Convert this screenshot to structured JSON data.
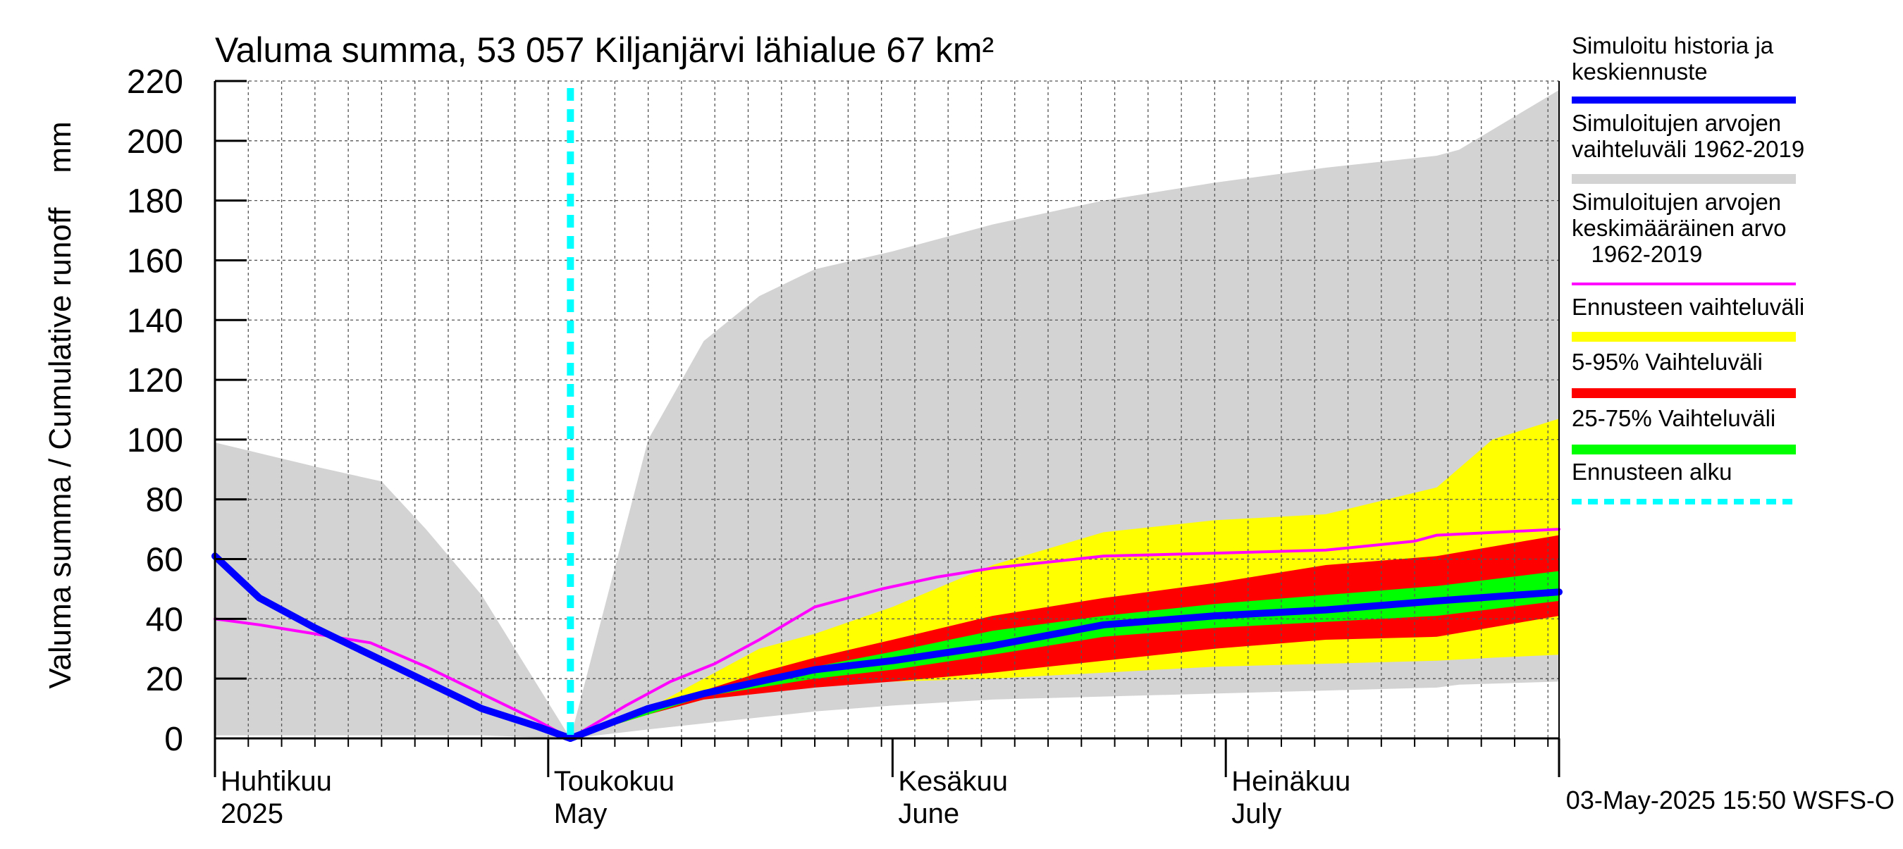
{
  "chart_data": {
    "type": "area",
    "title": "Valuma summa, 53 057 Kiljanjärvi lähialue 67 km²",
    "ylabel": "Valuma summa / Cumulative runoff    mm",
    "ylim": [
      0,
      220
    ],
    "y_ticks": [
      0,
      20,
      40,
      60,
      80,
      100,
      120,
      140,
      160,
      180,
      200,
      220
    ],
    "y_tick_labels": [
      "0",
      "20",
      "40",
      "60",
      "80",
      "100",
      "120",
      "140",
      "160",
      "180",
      "200",
      "220"
    ],
    "x_range": [
      "2025-04-01",
      "2025-07-31"
    ],
    "x_month_labels": [
      {
        "date": "2025-04-01",
        "line1": "Huhtikuu",
        "line2": "2025"
      },
      {
        "date": "2025-05-01",
        "line1": "Toukokuu",
        "line2": "May"
      },
      {
        "date": "2025-06-01",
        "line1": "Kesäkuu",
        "line2": "June"
      },
      {
        "date": "2025-07-01",
        "line1": "Heinäkuu",
        "line2": "July"
      }
    ],
    "grid": true,
    "legend_position": "right",
    "forecast_start": "2025-05-03",
    "footer": "03-May-2025 15:50 WSFS-O",
    "legend": [
      {
        "label": "Simuloitu historia ja keskiennuste",
        "color": "#0000ff",
        "style": "line-thick"
      },
      {
        "label": "Simuloitujen arvojen vaihteluväli 1962-2019",
        "color": "#d3d3d3",
        "style": "band"
      },
      {
        "label": "Simuloitujen arvojen keskimääräinen arvo 1962-2019",
        "color": "#ff00ff",
        "style": "line"
      },
      {
        "label": "Ennusteen vaihteluväli",
        "color": "#ffff00",
        "style": "band"
      },
      {
        "label": "5-95% Vaihteluväli",
        "color": "#ff0000",
        "style": "band"
      },
      {
        "label": "25-75% Vaihteluväli",
        "color": "#00ff00",
        "style": "band"
      },
      {
        "label": "Ennusteen alku",
        "color": "#00ffff",
        "style": "dashed"
      }
    ],
    "series": [
      {
        "key": "hist_range",
        "dates": [
          "2025-04-01",
          "2025-04-10",
          "2025-04-16",
          "2025-04-20",
          "2025-04-25",
          "2025-05-03",
          "2025-05-10",
          "2025-05-15",
          "2025-05-20",
          "2025-05-25",
          "2025-06-01",
          "2025-06-10",
          "2025-06-20",
          "2025-06-30",
          "2025-07-10",
          "2025-07-20",
          "2025-07-22",
          "2025-07-31"
        ],
        "upper": [
          99,
          91,
          86,
          70,
          48,
          0,
          100,
          133,
          148,
          157,
          163,
          172,
          180,
          186,
          191,
          195,
          197,
          217
        ],
        "lower": [
          1,
          1,
          1,
          1,
          1,
          0,
          3,
          5,
          7,
          9,
          11,
          13,
          14,
          15,
          16,
          17,
          18,
          19
        ]
      },
      {
        "key": "forecast_range",
        "dates": [
          "2025-05-03",
          "2025-05-10",
          "2025-05-15",
          "2025-05-20",
          "2025-05-25",
          "2025-06-01",
          "2025-06-10",
          "2025-06-20",
          "2025-06-30",
          "2025-07-10",
          "2025-07-20",
          "2025-07-25",
          "2025-07-31"
        ],
        "upper": [
          0,
          10,
          20,
          30,
          35,
          44,
          58,
          69,
          73,
          75,
          84,
          100,
          107
        ],
        "lower": [
          0,
          8,
          13,
          16,
          18,
          19,
          20,
          22,
          24,
          25,
          26,
          27,
          28
        ]
      },
      {
        "key": "p5_95",
        "dates": [
          "2025-05-03",
          "2025-05-10",
          "2025-05-15",
          "2025-05-20",
          "2025-05-25",
          "2025-06-01",
          "2025-06-10",
          "2025-06-20",
          "2025-06-30",
          "2025-07-10",
          "2025-07-20",
          "2025-07-31"
        ],
        "upper": [
          0,
          9,
          16,
          22,
          27,
          33,
          41,
          47,
          52,
          58,
          61,
          68
        ],
        "lower": [
          0,
          8,
          13,
          15,
          17,
          19,
          22,
          26,
          30,
          33,
          34,
          41
        ]
      },
      {
        "key": "p25_75",
        "dates": [
          "2025-05-03",
          "2025-05-10",
          "2025-05-15",
          "2025-05-20",
          "2025-05-25",
          "2025-06-01",
          "2025-06-10",
          "2025-06-20",
          "2025-06-30",
          "2025-07-10",
          "2025-07-20",
          "2025-07-31"
        ],
        "upper": [
          0,
          9,
          15,
          20,
          24,
          29,
          36,
          41,
          45,
          48,
          51,
          56
        ],
        "lower": [
          0,
          8,
          14,
          17,
          20,
          23,
          28,
          34,
          37,
          39,
          41,
          46
        ]
      },
      {
        "key": "hist_mean",
        "dates": [
          "2025-04-01",
          "2025-04-05",
          "2025-04-10",
          "2025-04-15",
          "2025-04-20",
          "2025-04-25",
          "2025-04-30",
          "2025-05-03",
          "2025-05-08",
          "2025-05-12",
          "2025-05-16",
          "2025-05-20",
          "2025-05-25",
          "2025-05-31",
          "2025-06-05",
          "2025-06-10",
          "2025-06-20",
          "2025-06-30",
          "2025-07-10",
          "2025-07-18",
          "2025-07-20",
          "2025-07-31"
        ],
        "values": [
          40,
          38,
          35,
          32,
          24,
          15,
          6,
          0,
          11,
          19,
          25,
          33,
          44,
          50,
          54,
          57,
          61,
          62,
          63,
          66,
          68,
          70
        ]
      },
      {
        "key": "sim_history",
        "dates": [
          "2025-04-01",
          "2025-04-05",
          "2025-04-10",
          "2025-04-15",
          "2025-04-20",
          "2025-04-25",
          "2025-04-30",
          "2025-05-03"
        ],
        "values": [
          61,
          47,
          37,
          28,
          19,
          10,
          4,
          0
        ]
      },
      {
        "key": "median_forecast",
        "dates": [
          "2025-05-03",
          "2025-05-10",
          "2025-05-15",
          "2025-05-20",
          "2025-05-25",
          "2025-06-01",
          "2025-06-10",
          "2025-06-20",
          "2025-06-30",
          "2025-07-10",
          "2025-07-20",
          "2025-07-31"
        ],
        "values": [
          0,
          10,
          15,
          19,
          23,
          26,
          31,
          38,
          41,
          43,
          46,
          49
        ]
      }
    ]
  }
}
